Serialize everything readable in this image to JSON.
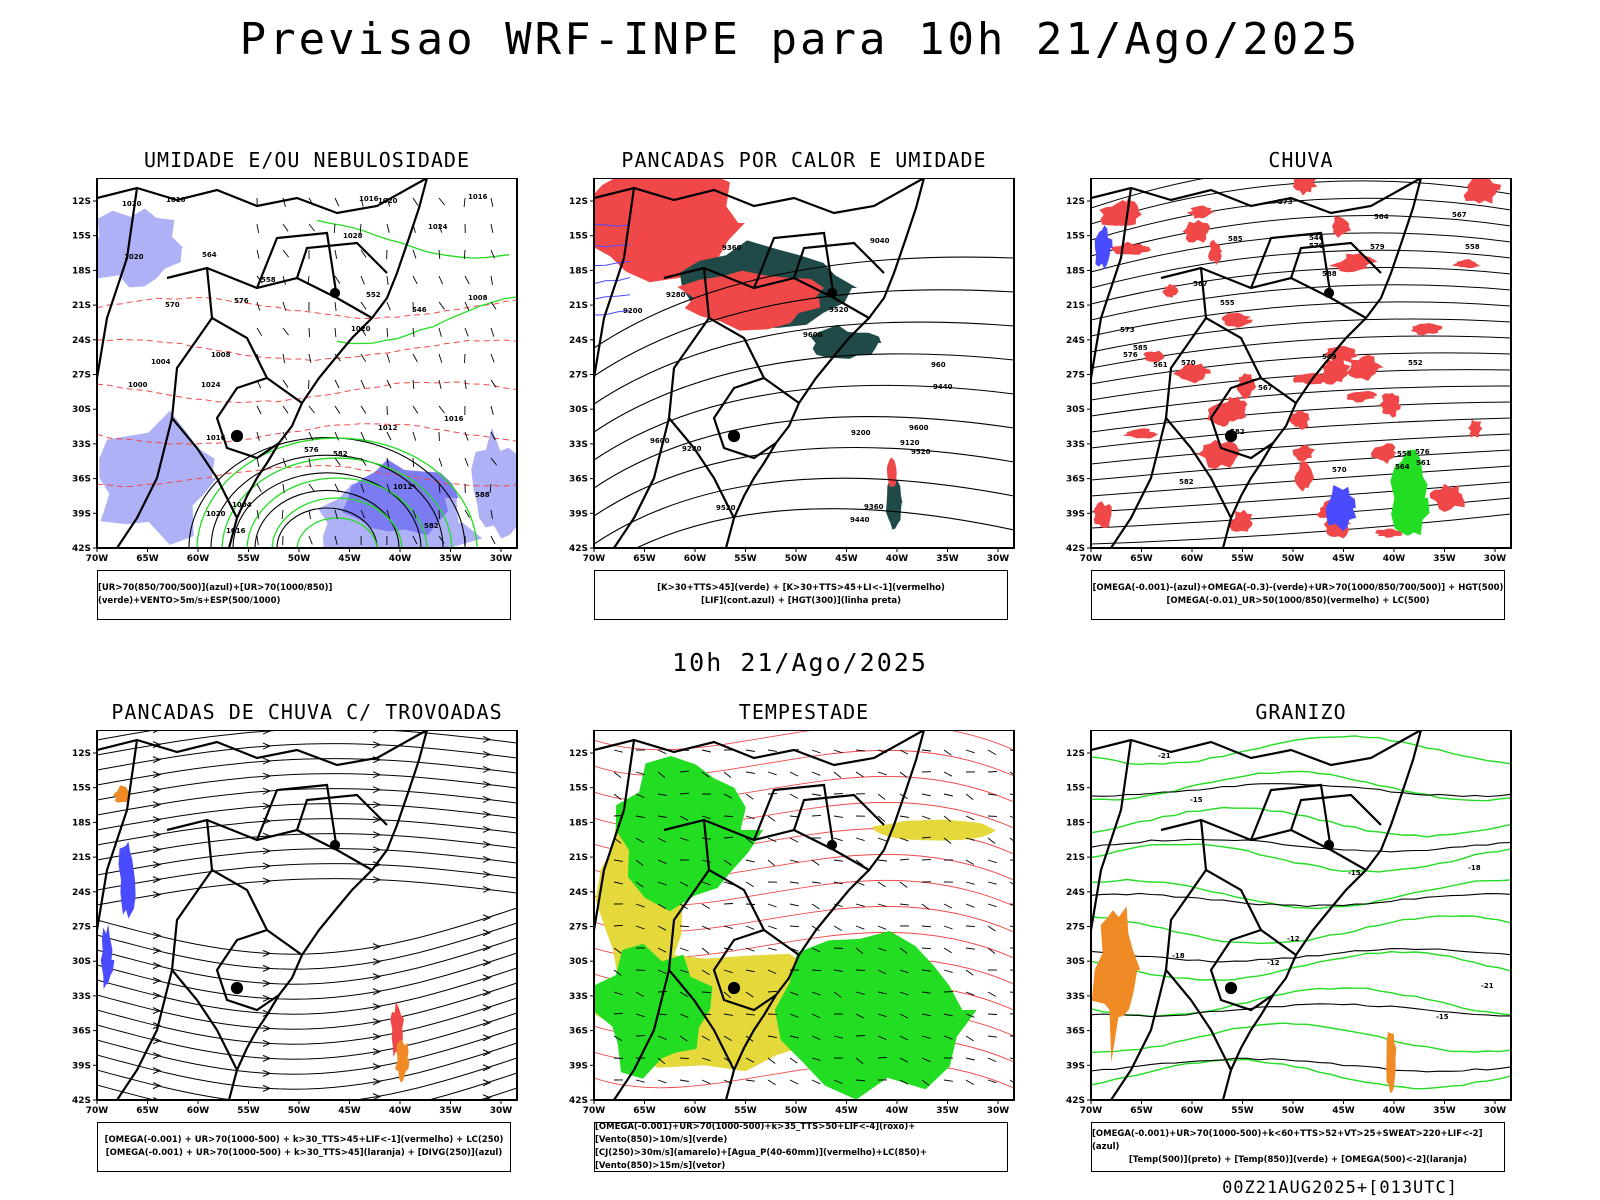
{
  "header": {
    "title": "Previsao WRF-INPE  para 10h 21/Ago/2025"
  },
  "middle_title": "10h 21/Ago/2025",
  "stamp": "00Z21AUG2025+[013UTC]",
  "axes": {
    "lat_labels": [
      "12S",
      "15S",
      "18S",
      "21S",
      "24S",
      "27S",
      "30S",
      "33S",
      "36S",
      "39S",
      "42S"
    ],
    "lon_labels": [
      "70W",
      "65W",
      "60W",
      "55W",
      "50W",
      "45W",
      "40W",
      "35W",
      "30W"
    ]
  },
  "colors": {
    "blue": "#4a4aff",
    "lightblue": "#aeb1f5",
    "green": "#22dd22",
    "red": "#f04848",
    "teal": "#1f4a48",
    "yellow": "#e4d83a",
    "orange": "#f08a24"
  },
  "panels": [
    {
      "title": "UMIDADE E/OU NEBULOSIDADE",
      "caption": [
        "[UR>70(850/700/500)](azul)+[UR>70(1000/850)](verde)+VENTO>5m/s+ESP(500/1000)"
      ],
      "contour_labels": [
        "1020",
        "1016",
        "1020",
        "1024",
        "1016",
        "1012",
        "1016",
        "1020",
        "1016",
        "1020",
        "1024",
        "1028",
        "1008",
        "1004",
        "1000",
        "1012",
        "1008",
        "1016",
        "1020",
        "570",
        "576",
        "582",
        "588",
        "564",
        "552",
        "546",
        "558",
        "1004",
        "1016",
        "576",
        "582"
      ]
    },
    {
      "title": "PANCADAS POR CALOR E UMIDADE",
      "caption": [
        "[K>30+TTS>45](verde) + [K>30+TTS>45+LI<-1](vermelho)",
        "[LIF](cont.azul) + [HGT(300)](linha preta)"
      ],
      "contour_labels": [
        "9600",
        "9520",
        "9600",
        "9600",
        "9520",
        "9440",
        "9360",
        "9280",
        "9200",
        "9520",
        "9440",
        "9360",
        "9280",
        "9200",
        "9120",
        "9040",
        "960"
      ]
    },
    {
      "title": "CHUVA",
      "caption": [
        "[OMEGA(-0.001)-(azul)+OMEGA(-0.3)-(verde)+UR>70(1000/850/700/500)] + HGT(500)",
        "[OMEGA(-0.01)_UR>50(1000/850)(vermelho) + LC(500)"
      ],
      "contour_labels": [
        "588",
        "585",
        "585",
        "582",
        "579",
        "576",
        "573",
        "570",
        "567",
        "564",
        "561",
        "558",
        "555",
        "552",
        "549",
        "546",
        "570",
        "567",
        "564",
        "561",
        "558",
        "582",
        "576",
        "573",
        "570",
        "567"
      ]
    },
    {
      "title": "PANCADAS DE CHUVA C/ TROVOADAS",
      "caption": [
        "[OMEGA(-0.001) + UR>70(1000-500) + k>30_TTS>45+LIF<-1](vermelho) + LC(250)",
        "[OMEGA(-0.001) + UR>70(1000-500) + k>30_TTS>45](laranja) + [DIVG(250)](azul)"
      ],
      "contour_labels": []
    },
    {
      "title": "TEMPESTADE",
      "caption": [
        "[OMEGA(-0.001)+UR>70(1000-500)+k>35_TTS>50+LIF<-4](roxo)+[Vento(850)>10m/s](verde)",
        "[CJ(250)>30m/s](amarelo)+[Agua_P(40-60mm)](vermelho)+LC(850)+[Vento(850)>15m/s](vetor)"
      ],
      "contour_labels": []
    },
    {
      "title": "GRANIZO",
      "caption": [
        "[OMEGA(-0.001)+UR>70(1000-500)+k<60+TTS>52+VT>25+SWEAT>220+LIF<-2](azul)",
        "[Temp(500)](preto) + [Temp(850)](verde) + [OMEGA(500)<-2](laranja)"
      ],
      "contour_labels": [
        "-12",
        "-12",
        "-15",
        "-18",
        "-21",
        "-15",
        "-18",
        "-15",
        "-21"
      ]
    }
  ]
}
